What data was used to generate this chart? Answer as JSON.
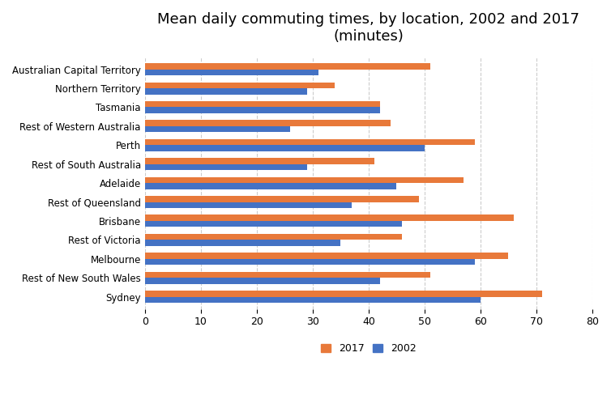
{
  "title": "Mean daily commuting times, by location, 2002 and 2017\n(minutes)",
  "categories": [
    "Sydney",
    "Rest of New South Wales",
    "Melbourne",
    "Rest of Victoria",
    "Brisbane",
    "Rest of Queensland",
    "Adelaide",
    "Rest of South Australia",
    "Perth",
    "Rest of Western Australia",
    "Tasmania",
    "Northern Territory",
    "Australian Capital Territory"
  ],
  "values_2017": [
    71,
    51,
    65,
    46,
    66,
    49,
    57,
    41,
    59,
    44,
    42,
    34,
    51
  ],
  "values_2002": [
    60,
    42,
    59,
    35,
    46,
    37,
    45,
    29,
    50,
    26,
    42,
    29,
    31
  ],
  "color_2017": "#E8793A",
  "color_2002": "#4472C4",
  "xlim": [
    0,
    80
  ],
  "xticks": [
    0,
    10,
    20,
    30,
    40,
    50,
    60,
    70,
    80
  ],
  "legend_2017": "2017",
  "legend_2002": "2002",
  "bar_height": 0.32,
  "title_fontsize": 13,
  "label_fontsize": 8.5,
  "tick_fontsize": 9
}
